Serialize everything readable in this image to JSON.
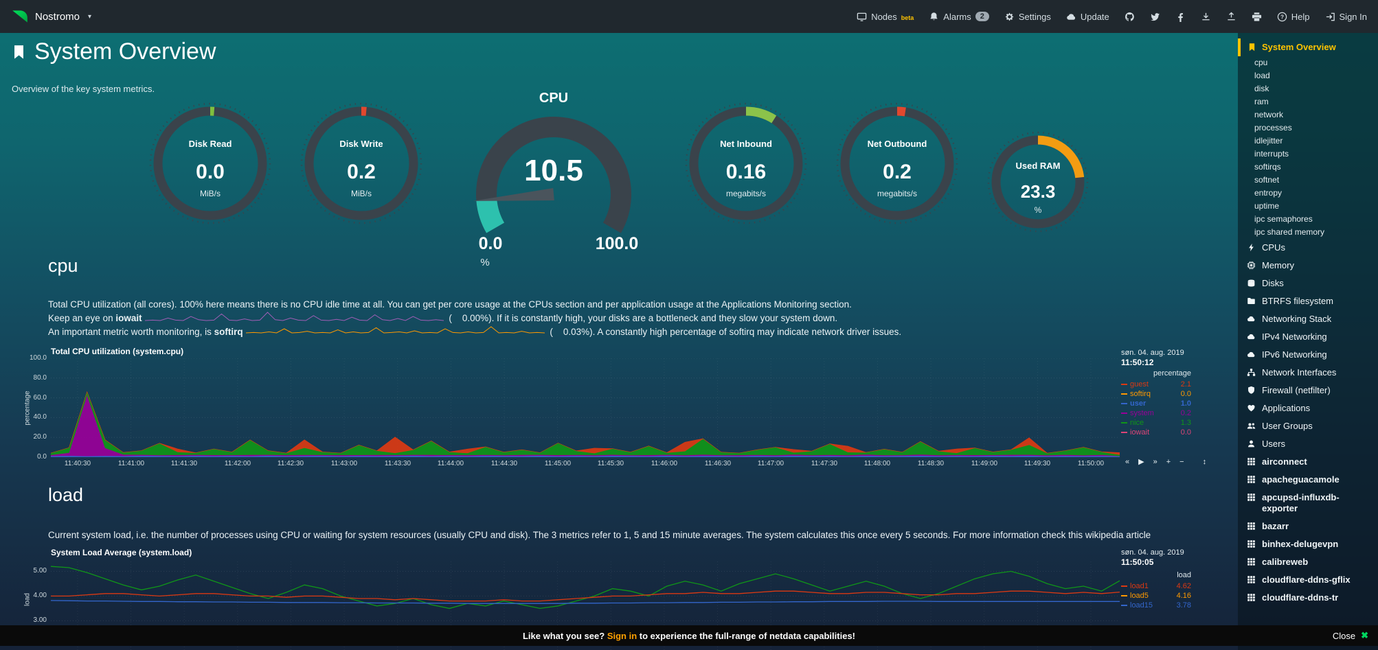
{
  "navbar": {
    "brand": "Nostromo",
    "brand_caret": "▾",
    "items": [
      {
        "id": "nodes",
        "icon": "monitor",
        "label": "Nodes",
        "sup": "beta"
      },
      {
        "id": "alarms",
        "icon": "bell",
        "label": "Alarms",
        "badge": "2"
      },
      {
        "id": "settings",
        "icon": "gear",
        "label": "Settings"
      },
      {
        "id": "update",
        "icon": "cloud",
        "label": "Update"
      },
      {
        "id": "github",
        "icon": "github",
        "label": ""
      },
      {
        "id": "twitter",
        "icon": "twitter",
        "label": ""
      },
      {
        "id": "facebook",
        "icon": "facebook",
        "label": ""
      },
      {
        "id": "import",
        "icon": "download",
        "label": ""
      },
      {
        "id": "export",
        "icon": "upload",
        "label": ""
      },
      {
        "id": "print",
        "icon": "printer",
        "label": ""
      },
      {
        "id": "help",
        "icon": "question",
        "label": "Help"
      },
      {
        "id": "signin",
        "icon": "sign-in",
        "label": "Sign In"
      }
    ]
  },
  "header": {
    "title": "System Overview",
    "subtitle": "Overview of the key system metrics."
  },
  "gauges": [
    {
      "id": "disk-read",
      "label": "Disk Read",
      "value": "0.0",
      "unit": "MiB/s",
      "arc_color": "#7fbf3f",
      "arc_pct": 1.2
    },
    {
      "id": "disk-write",
      "label": "Disk Write",
      "value": "0.2",
      "unit": "MiB/s",
      "arc_color": "#e1482e",
      "arc_pct": 1.5
    },
    {
      "id": "net-inbound",
      "label": "Net Inbound",
      "value": "0.16",
      "unit": "megabits/s",
      "arc_color": "#8bc34a",
      "arc_pct": 9
    },
    {
      "id": "net-outbound",
      "label": "Net Outbound",
      "value": "0.2",
      "unit": "megabits/s",
      "arc_color": "#e1482e",
      "arc_pct": 2.5
    },
    {
      "id": "used-ram",
      "label": "Used RAM",
      "value": "23.3",
      "unit": "%",
      "arc_color": "#f39c12",
      "arc_pct": 23.3,
      "small": true
    }
  ],
  "cpu_gauge": {
    "title": "CPU",
    "value": "10.5",
    "min": "0.0",
    "max": "100.0",
    "unit": "%",
    "pct": 10.5,
    "arc_color": "#2dc1ae",
    "track_color": "#3a434b",
    "needle_color": "#4a545c"
  },
  "cpu_section": {
    "heading": "cpu",
    "desc1": "Total CPU utilization (all cores). 100% here means there is no CPU idle time at all. You can get per core usage at the CPUs section and per application usage at the Applications Monitoring section.",
    "desc2_prefix": "Keep an eye on ",
    "desc2_bold": "iowait",
    "desc2_suffix": " (    0.00%). If it is constantly high, your disks are a bottleneck and they slow your system down.",
    "desc3_prefix": "An important metric worth monitoring, is ",
    "desc3_bold": "softirq",
    "desc3_suffix": " (    0.03%). A constantly high percentage of softirq may indicate network driver issues."
  },
  "load_section": {
    "heading": "load",
    "desc": "Current system load, i.e. the number of processes using CPU or waiting for system resources (usually CPU and disk). The 3 metrics refer to 1, 5 and 15 minute averages. The system calculates this once every 5 seconds. For more information check this wikipedia article"
  },
  "sparklines": {
    "iowait": {
      "color": "#a05eb5",
      "values": [
        0,
        0.05,
        0,
        0.3,
        0.05,
        0,
        0.5,
        0.1,
        0,
        0.05,
        0.8,
        0.05,
        0,
        0.2,
        0,
        0.05,
        1,
        0.1,
        0,
        0.3,
        0.05,
        0,
        0.6,
        0.05,
        0,
        0.15,
        0,
        0.4,
        0.05,
        0,
        0.7,
        0.1,
        0,
        0.25,
        0,
        0.5,
        0.05,
        0,
        0.1,
        0
      ]
    },
    "softirq": {
      "color": "#ff9900",
      "values": [
        0.1,
        0.12,
        0.1,
        0.15,
        0.1,
        0.3,
        0.1,
        0.12,
        0.18,
        0.1,
        0.12,
        0.1,
        0.25,
        0.1,
        0.15,
        0.1,
        0.12,
        0.35,
        0.1,
        0.12,
        0.15,
        0.1,
        0.2,
        0.1,
        0.12,
        0.1,
        0.3,
        0.12,
        0.1,
        0.15,
        0.1,
        0.12,
        0.4,
        0.1,
        0.12,
        0.1,
        0.18,
        0.1,
        0.12,
        0.1
      ]
    }
  },
  "charts": {
    "cpu": {
      "type": "area-stacked",
      "title": "Total CPU utilization (system.cpu)",
      "date": "søn. 04. aug. 2019",
      "time": "11:50:12",
      "ylabel": "percentage",
      "legend_header": "percentage",
      "y_ticks": [
        100,
        80,
        60,
        40,
        20,
        0
      ],
      "ylim": [
        0,
        100
      ],
      "x_labels": [
        "11:40:30",
        "11:41:00",
        "11:41:30",
        "11:42:00",
        "11:42:30",
        "11:43:00",
        "11:43:30",
        "11:44:00",
        "11:44:30",
        "11:45:00",
        "11:45:30",
        "11:46:00",
        "11:46:30",
        "11:47:00",
        "11:47:30",
        "11:48:00",
        "11:48:30",
        "11:49:00",
        "11:49:30",
        "11:50:00"
      ],
      "legend": [
        {
          "name": "guest",
          "value": "2.1",
          "color": "#DC3912"
        },
        {
          "name": "softirq",
          "value": "0.0",
          "color": "#FF9900"
        },
        {
          "name": "user",
          "value": "1.0",
          "color": "#3366CC",
          "bold": true
        },
        {
          "name": "system",
          "value": "0.2",
          "color": "#990099"
        },
        {
          "name": "nice",
          "value": "1.3",
          "color": "#109618"
        },
        {
          "name": "iowait",
          "value": "0.0",
          "color": "#DD4477"
        }
      ],
      "series": [
        {
          "name": "user",
          "color": "#3366CC",
          "values": [
            1.2,
            1.5,
            1.1,
            1.4,
            1.2,
            1.6,
            1.3,
            1.1,
            1.5,
            1.2,
            1.4,
            1.1,
            1.6,
            1.2,
            1.3,
            1.5,
            1.1,
            1.4,
            1.2,
            1.3,
            1.6,
            1.2,
            1.4,
            1.1,
            1.5,
            1.3,
            1.2,
            1.6,
            1.1,
            1.4,
            1.2,
            1.5,
            1.3,
            1.1,
            1.6,
            1.2,
            1.4,
            1.3,
            1.1,
            1.5,
            1.2,
            1.6,
            1.3,
            1.4,
            1.1,
            1.5,
            1.2,
            1.3,
            1.6,
            1.1,
            1.4,
            1.2,
            1.5,
            1.3,
            1.6,
            1.1,
            1.4,
            1.2,
            1.3,
            1.0
          ]
        },
        {
          "name": "system",
          "color": "#990099",
          "values": [
            1.0,
            3.0,
            62.0,
            8.0,
            1.5,
            1.0,
            0.8,
            1.2,
            0.9,
            1.1,
            0.8,
            1.3,
            0.9,
            1.0,
            1.2,
            0.8,
            1.1,
            0.9,
            1.3,
            1.0,
            0.8,
            1.2,
            0.9,
            1.1,
            1.0,
            0.8,
            1.3,
            0.9,
            1.2,
            1.0,
            0.9,
            1.1,
            0.8,
            1.2,
            1.0,
            0.9,
            1.3,
            0.8,
            1.1,
            1.0,
            0.9,
            1.2,
            0.8,
            1.1,
            1.0,
            1.3,
            0.9,
            0.8,
            1.2,
            1.0,
            0.9,
            1.1,
            0.8,
            1.3,
            1.0,
            0.9,
            1.2,
            0.8,
            1.1,
            0.2
          ]
        },
        {
          "name": "nice",
          "color": "#109618",
          "values": [
            2,
            5,
            3,
            8,
            2,
            4,
            12,
            3,
            2,
            6,
            3,
            15,
            4,
            2,
            7,
            3,
            2,
            10,
            4,
            2,
            5,
            14,
            3,
            2,
            8,
            3,
            5,
            2,
            12,
            4,
            2,
            6,
            3,
            9,
            2,
            4,
            16,
            3,
            2,
            5,
            8,
            2,
            4,
            11,
            3,
            2,
            6,
            3,
            13,
            4,
            2,
            7,
            3,
            5,
            10,
            2,
            4,
            8,
            3,
            1.3
          ]
        },
        {
          "name": "guest",
          "color": "#DC3912",
          "values": [
            0,
            0,
            0,
            0,
            0,
            0,
            0,
            3,
            0,
            0,
            0,
            0,
            0,
            0,
            8,
            0,
            0,
            0,
            0,
            16,
            0,
            0,
            0,
            4,
            0,
            0,
            0,
            0,
            0,
            0,
            5,
            0,
            0,
            0,
            0,
            9,
            0,
            0,
            0,
            0,
            0,
            3,
            0,
            0,
            6,
            0,
            0,
            0,
            0,
            0,
            4,
            0,
            0,
            0,
            7,
            0,
            0,
            0,
            0,
            2.1
          ]
        }
      ],
      "toolbar": [
        {
          "glyph": "«",
          "name": "pan-left"
        },
        {
          "glyph": "▶",
          "name": "play"
        },
        {
          "glyph": "»",
          "name": "pan-right"
        },
        {
          "glyph": "+",
          "name": "zoom-in"
        },
        {
          "glyph": "−",
          "name": "zoom-out"
        }
      ],
      "resize_glyph": "↕"
    },
    "load": {
      "type": "line",
      "title": "System Load Average (system.load)",
      "date": "søn. 04. aug. 2019",
      "time": "11:50:05",
      "ylabel": "load",
      "legend_header": "load",
      "y_ticks": [
        5,
        4,
        3
      ],
      "ylim": [
        1.51,
        5.4
      ],
      "legend": [
        {
          "name": "load1",
          "value": "4.62",
          "color": "#DC3912"
        },
        {
          "name": "load5",
          "value": "4.16",
          "color": "#FF9900"
        },
        {
          "name": "load15",
          "value": "3.78",
          "color": "#3366CC"
        }
      ],
      "series": [
        {
          "name": "load1",
          "color": "#109618",
          "values": [
            5.2,
            5.15,
            4.95,
            4.7,
            4.45,
            4.25,
            4.4,
            4.65,
            4.85,
            4.6,
            4.35,
            4.1,
            3.9,
            4.15,
            4.45,
            4.3,
            4.0,
            3.8,
            3.6,
            3.7,
            3.9,
            3.65,
            3.5,
            3.7,
            3.6,
            3.8,
            3.65,
            3.5,
            3.6,
            3.8,
            4.0,
            4.3,
            4.2,
            4.0,
            4.4,
            4.6,
            4.45,
            4.2,
            4.5,
            4.7,
            4.9,
            4.7,
            4.45,
            4.2,
            4.4,
            4.6,
            4.4,
            4.1,
            3.9,
            4.1,
            4.4,
            4.7,
            4.9,
            5.0,
            4.8,
            4.5,
            4.3,
            4.4,
            4.2,
            4.62
          ]
        },
        {
          "name": "load5",
          "color": "#DC3912",
          "values": [
            4.0,
            4.0,
            4.05,
            4.1,
            4.1,
            4.05,
            4.0,
            4.05,
            4.1,
            4.1,
            4.05,
            4.0,
            4.0,
            3.95,
            4.0,
            4.0,
            3.95,
            3.9,
            3.9,
            3.85,
            3.9,
            3.85,
            3.8,
            3.8,
            3.8,
            3.85,
            3.8,
            3.8,
            3.85,
            3.9,
            3.95,
            4.0,
            4.0,
            4.05,
            4.1,
            4.1,
            4.15,
            4.1,
            4.1,
            4.15,
            4.2,
            4.2,
            4.15,
            4.1,
            4.1,
            4.15,
            4.15,
            4.1,
            4.05,
            4.05,
            4.1,
            4.1,
            4.15,
            4.2,
            4.2,
            4.15,
            4.1,
            4.15,
            4.1,
            4.16
          ]
        },
        {
          "name": "load15",
          "color": "#3366CC",
          "values": [
            3.82,
            3.81,
            3.8,
            3.8,
            3.79,
            3.78,
            3.78,
            3.77,
            3.77,
            3.76,
            3.76,
            3.75,
            3.75,
            3.74,
            3.74,
            3.74,
            3.73,
            3.73,
            3.72,
            3.72,
            3.72,
            3.71,
            3.71,
            3.7,
            3.7,
            3.7,
            3.7,
            3.7,
            3.7,
            3.71,
            3.71,
            3.72,
            3.72,
            3.73,
            3.73,
            3.74,
            3.74,
            3.75,
            3.75,
            3.76,
            3.76,
            3.77,
            3.77,
            3.78,
            3.78,
            3.78,
            3.79,
            3.79,
            3.79,
            3.78,
            3.78,
            3.78,
            3.78,
            3.78,
            3.78,
            3.78,
            3.78,
            3.78,
            3.78,
            3.78
          ]
        }
      ]
    }
  },
  "sidebar": {
    "items": [
      {
        "type": "active",
        "icon": "bookmark",
        "label": "System Overview"
      },
      {
        "type": "sub",
        "label": "cpu"
      },
      {
        "type": "sub",
        "label": "load"
      },
      {
        "type": "sub",
        "label": "disk"
      },
      {
        "type": "sub",
        "label": "ram"
      },
      {
        "type": "sub",
        "label": "network"
      },
      {
        "type": "sub",
        "label": "processes"
      },
      {
        "type": "sub",
        "label": "idlejitter"
      },
      {
        "type": "sub",
        "label": "interrupts"
      },
      {
        "type": "sub",
        "label": "softirqs"
      },
      {
        "type": "sub",
        "label": "softnet"
      },
      {
        "type": "sub",
        "label": "entropy"
      },
      {
        "type": "sub",
        "label": "uptime"
      },
      {
        "type": "sub",
        "label": "ipc semaphores"
      },
      {
        "type": "sub",
        "label": "ipc shared memory"
      },
      {
        "type": "icon",
        "icon": "bolt",
        "label": "CPUs"
      },
      {
        "type": "icon",
        "icon": "memory",
        "label": "Memory"
      },
      {
        "type": "icon",
        "icon": "disks",
        "label": "Disks"
      },
      {
        "type": "icon",
        "icon": "folder",
        "label": "BTRFS filesystem"
      },
      {
        "type": "icon",
        "icon": "cloud",
        "label": "Networking Stack"
      },
      {
        "type": "icon",
        "icon": "cloud",
        "label": "IPv4 Networking"
      },
      {
        "type": "icon",
        "icon": "cloud",
        "label": "IPv6 Networking"
      },
      {
        "type": "icon",
        "icon": "interfaces",
        "label": "Network Interfaces"
      },
      {
        "type": "icon",
        "icon": "shield",
        "label": "Firewall (netfilter)"
      },
      {
        "type": "icon",
        "icon": "heart",
        "label": "Applications"
      },
      {
        "type": "icon",
        "icon": "users",
        "label": "User Groups"
      },
      {
        "type": "icon",
        "icon": "user",
        "label": "Users"
      },
      {
        "type": "app",
        "icon": "grid",
        "label": "airconnect"
      },
      {
        "type": "app",
        "icon": "grid",
        "label": "apacheguacamole"
      },
      {
        "type": "app",
        "icon": "grid",
        "label": "apcupsd-influxdb-exporter"
      },
      {
        "type": "app",
        "icon": "grid",
        "label": "bazarr"
      },
      {
        "type": "app",
        "icon": "grid",
        "label": "binhex-delugevpn"
      },
      {
        "type": "app",
        "icon": "grid",
        "label": "calibreweb"
      },
      {
        "type": "app",
        "icon": "grid",
        "label": "cloudflare-ddns-gflix"
      },
      {
        "type": "app",
        "icon": "grid",
        "label": "cloudflare-ddns-tr"
      }
    ]
  },
  "bottom_bar": {
    "prefix": "Like what you see? ",
    "link": "Sign in",
    "suffix": " to experience the full-range of netdata capabilities!",
    "close": "Close",
    "close_icon": "✖",
    "link_color": "#ffa000",
    "close_icon_color": "#00d75f"
  }
}
